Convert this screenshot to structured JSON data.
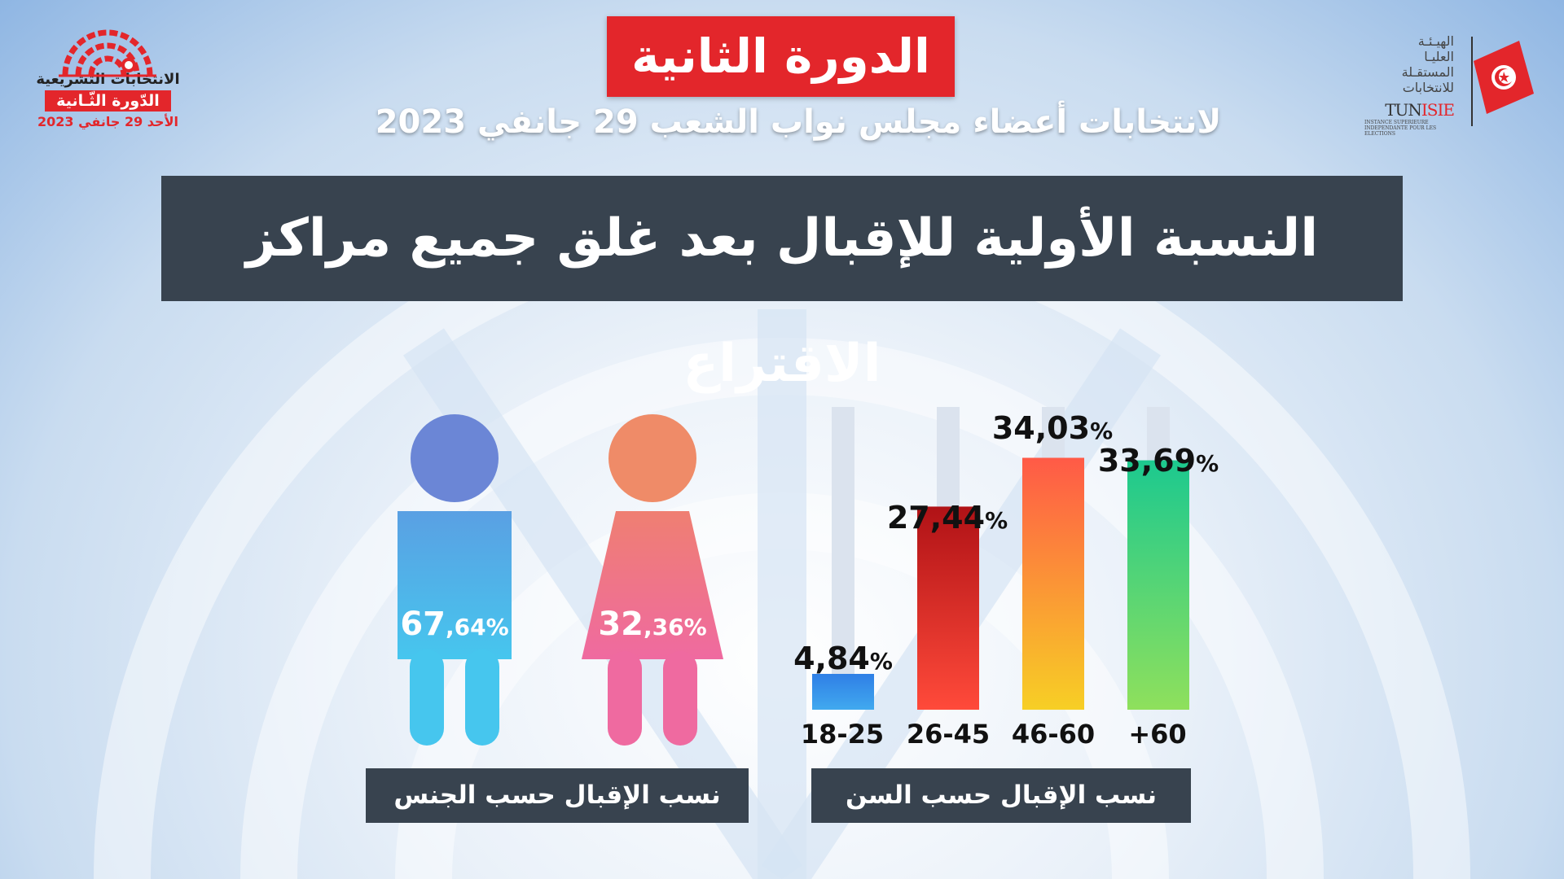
{
  "header": {
    "round_title": "الدورة الثانية",
    "subtitle": "لانتخابات أعضاء مجلس نواب الشعب 29 جانفي 2023",
    "main_title": "النسبة الأولية للإقبال بعد غلق جميع مراكز الاقتراع"
  },
  "logo_left": {
    "line1": "الانتخابات التشريعية",
    "line2": "الدّورة الثّـانية",
    "line3": "الأحد 29 جانفي 2023"
  },
  "logo_right": {
    "ar_lines": [
      "الهيـئـة",
      "العليـا",
      "المستقـلة",
      "للانتخابات"
    ],
    "tum": "TUN",
    "isie": "ISIE",
    "sub": "INSTANCE SUPERIEURE INDEPENDANTE POUR LES ELECTIONS"
  },
  "colors": {
    "red": "#e3262b",
    "dark_panel": "#38434f",
    "male_top": "#6b86d6",
    "male_body": "#4aa6e6",
    "female_top": "#ef8b68",
    "female_body": "#ee6b9a"
  },
  "panels": {
    "gender": "نسب الإقبال حسب الجنس",
    "age": "نسب الإقبال حسب السن"
  },
  "chart_data": [
    {
      "type": "bar",
      "title": "نسب الإقبال حسب السن",
      "categories": [
        "18-25",
        "26-45",
        "46-60",
        "+60"
      ],
      "values": [
        4.84,
        27.44,
        34.03,
        33.69
      ],
      "labels": [
        {
          "big": "4,84",
          "small": "%"
        },
        {
          "big": "27,44",
          "small": "%"
        },
        {
          "big": "34,03",
          "small": "%"
        },
        {
          "big": "33,69",
          "small": "%"
        }
      ],
      "colors": [
        [
          "#41a9ef",
          "#2f7fe6"
        ],
        [
          "#ff4a3a",
          "#b01216"
        ],
        [
          "#f7cf25",
          "#ff5a47"
        ],
        [
          "#8fe05c",
          "#1cc98f"
        ]
      ],
      "ylim": [
        0,
        40
      ]
    },
    {
      "type": "pictogram",
      "title": "نسب الإقبال حسب الجنس",
      "categories": [
        "male",
        "female"
      ],
      "values": [
        67.64,
        32.36
      ],
      "labels": [
        {
          "big": "67",
          "small": ",64%"
        },
        {
          "big": "32",
          "small": ",36%"
        }
      ]
    }
  ]
}
